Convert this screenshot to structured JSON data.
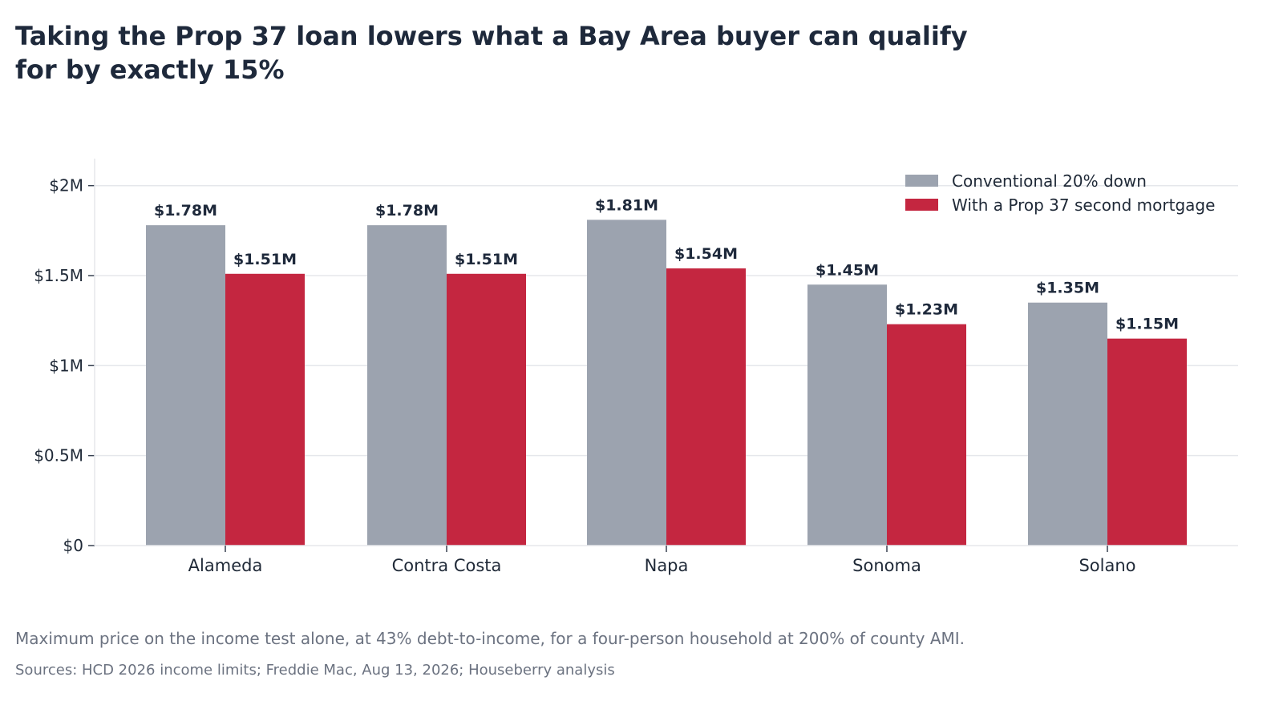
{
  "chart_data": {
    "type": "bar",
    "title": "Taking the Prop 37 loan lowers what a Bay Area buyer can qualify for by exactly 15%",
    "subtitle": "Maximum price on the income test alone, at 43% debt-to-income, for a four-person household at 200% of county AMI.",
    "source": "Sources: HCD 2026 income limits; Freddie Mac, Aug 13, 2026; Houseberry analysis",
    "xlabel": "",
    "ylabel": "",
    "categories": [
      "Alameda",
      "Contra Costa",
      "Napa",
      "Sonoma",
      "Solano"
    ],
    "series": [
      {
        "name": "Conventional 20% down",
        "color": "#9ca3af",
        "values": [
          1.78,
          1.78,
          1.81,
          1.45,
          1.35
        ],
        "labels": [
          "$1.78M",
          "$1.78M",
          "$1.81M",
          "$1.45M",
          "$1.35M"
        ]
      },
      {
        "name": "With a Prop 37 second mortgage",
        "color": "#c42640",
        "values": [
          1.51,
          1.51,
          1.54,
          1.23,
          1.15
        ],
        "labels": [
          "$1.51M",
          "$1.51M",
          "$1.54M",
          "$1.23M",
          "$1.15M"
        ]
      }
    ],
    "yticks": [
      0,
      0.5,
      1,
      1.5,
      2
    ],
    "ytick_labels": [
      "$0",
      "$0.5M",
      "$1M",
      "$1.5M",
      "$2M"
    ],
    "ylim": [
      0,
      2.15
    ],
    "grid": "horizontal",
    "legend_position": "top-right"
  }
}
